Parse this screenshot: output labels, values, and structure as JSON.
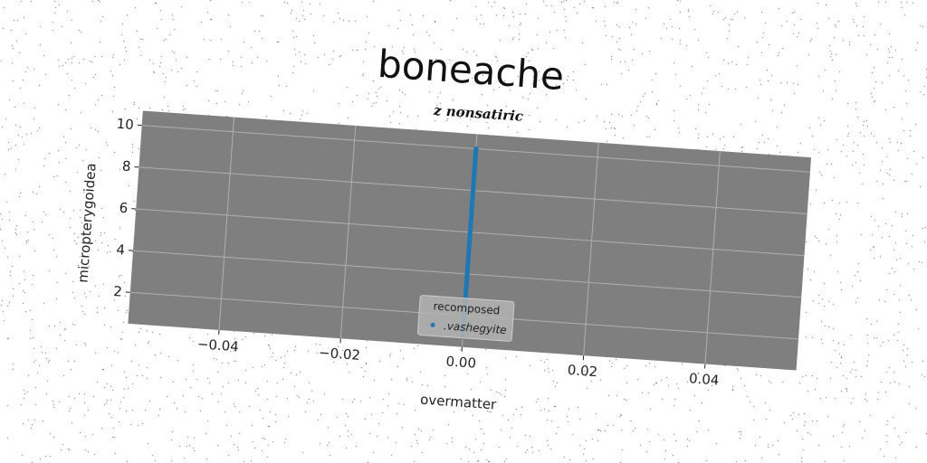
{
  "chart_data": {
    "type": "line",
    "title": "boneache",
    "subtitle": "z nonsatiric",
    "xlabel": "overmatter",
    "ylabel": "micropterygoidea",
    "xlim": [
      -0.055,
      0.055
    ],
    "ylim": [
      0.5,
      10.7
    ],
    "xticks": [
      -0.04,
      -0.02,
      0.0,
      0.02,
      0.04
    ],
    "xtick_labels": [
      "−0.04",
      "−0.02",
      "0.00",
      "0.02",
      "0.04"
    ],
    "yticks": [
      2,
      4,
      6,
      8,
      10
    ],
    "ytick_labels": [
      "2",
      "4",
      "6",
      "8",
      "10"
    ],
    "grid": true,
    "background": "#7f7f7f",
    "legend": {
      "title": "recomposed",
      "position": "lower center"
    },
    "series": [
      {
        "name": ".vashegyite",
        "color": "#1f77b4",
        "x": [
          0.0,
          0.0,
          0.0,
          0.0,
          0.0,
          0.0,
          0.0,
          0.0,
          0.0,
          0.0
        ],
        "y": [
          1,
          2,
          3,
          4,
          5,
          6,
          7,
          8,
          9,
          10
        ]
      }
    ]
  }
}
